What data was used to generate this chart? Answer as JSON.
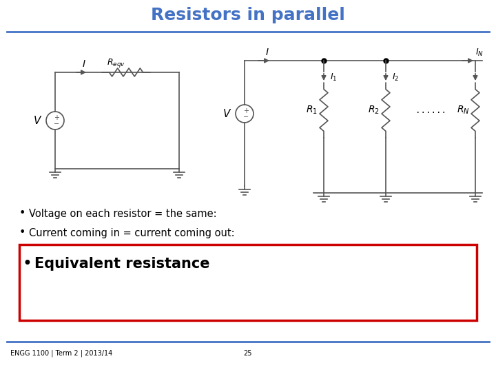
{
  "title": "Resistors in parallel",
  "title_color": "#4472C4",
  "title_fontsize": 18,
  "bullet1": "Voltage on each resistor = the same:",
  "bullet2": "Current coming in = current coming out:",
  "bullet3": "Equivalent resistance",
  "footer_left": "ENGG 1100 | Term 2 | 2013/14",
  "footer_center": "25",
  "background_color": "#FFFFFF",
  "line_color": "#4472C4",
  "red_box_color": "#CC0000",
  "text_color": "#000000",
  "bullet_fontsize": 10.5,
  "bullet3_fontsize": 15
}
